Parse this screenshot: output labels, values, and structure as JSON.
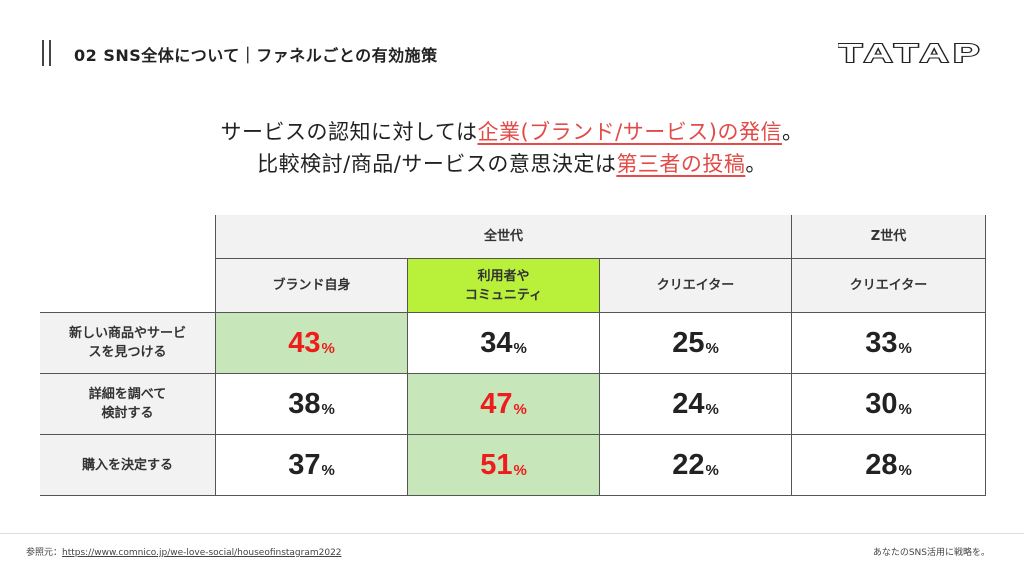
{
  "header": {
    "section_title": "02 SNS全体について｜ファネルごとの有効施策",
    "logo_text": "TATAP"
  },
  "headline": {
    "line1_prefix": "サービスの認知に対しては",
    "line1_highlight": "企業(ブランド/サービス)の発信",
    "line1_suffix": "。",
    "line2_prefix": "比較検討/商品/サービスの意思決定は",
    "line2_highlight": "第三者の投稿",
    "line2_suffix": "。"
  },
  "colors": {
    "highlight_text": "#e24b47",
    "top_value_text": "#ee1c1c",
    "top_cell_fill": "#c7e6b9",
    "header_accent": "#b8f03a"
  },
  "table": {
    "group_headers": [
      "全世代",
      "Z世代"
    ],
    "column_headers": [
      "ブランド自身",
      "利用者や\nコミュニティ",
      "クリエイター",
      "クリエイター"
    ],
    "row_labels": [
      "新しい商品やサービ\nスを見つける",
      "詳細を調べて\n検討する",
      "購入を決定する"
    ],
    "unit": "%",
    "rows": [
      [
        "43",
        "34",
        "25",
        "33"
      ],
      [
        "38",
        "47",
        "24",
        "30"
      ],
      [
        "37",
        "51",
        "22",
        "28"
      ]
    ],
    "highlighted_cells": [
      [
        0,
        0
      ],
      [
        1,
        1
      ],
      [
        2,
        1
      ]
    ]
  },
  "footer": {
    "source_label": "参照元：",
    "source_url": "https://www.comnico.jp/we-love-social/houseofinstagram2022",
    "tagline": "あなたのSNS活用に戦略を。"
  }
}
